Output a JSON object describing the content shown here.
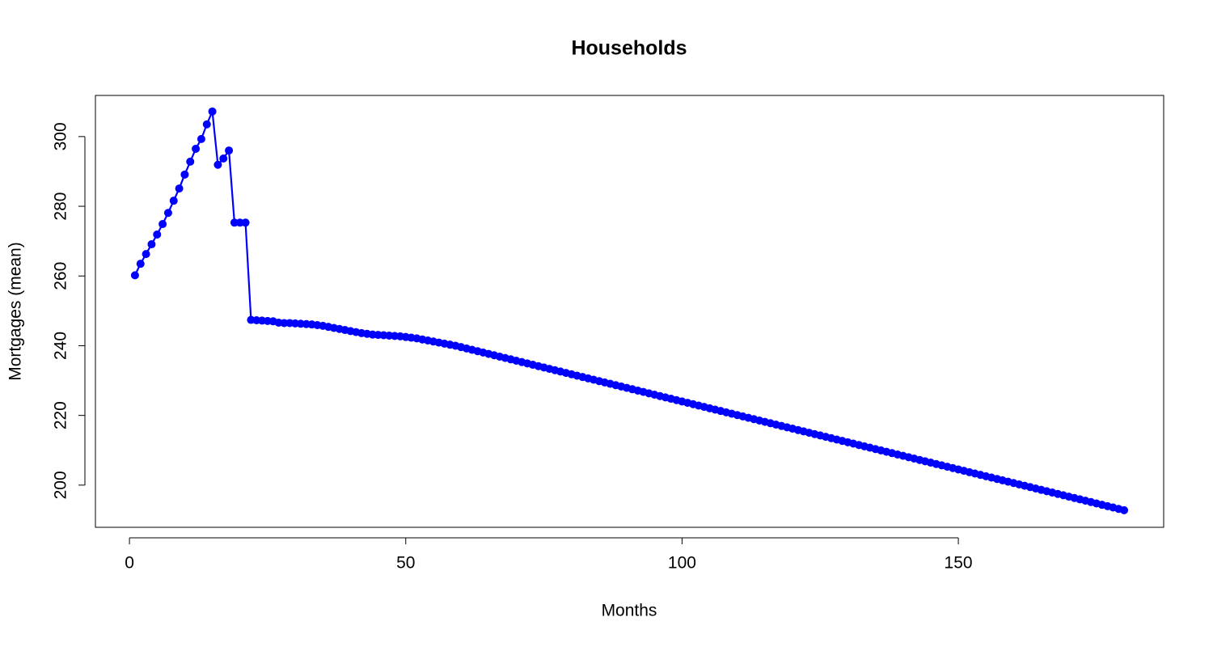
{
  "chart_data": {
    "type": "line",
    "title": "Households",
    "xlabel": "Months",
    "ylabel": "Mortgages (mean)",
    "x": [
      1,
      2,
      3,
      4,
      5,
      6,
      7,
      8,
      9,
      10,
      11,
      12,
      13,
      14,
      15,
      16,
      17,
      18,
      19,
      20,
      21,
      22,
      23,
      24,
      25,
      26,
      27,
      28,
      29,
      30,
      31,
      32,
      33,
      34,
      35,
      36,
      37,
      38,
      39,
      40,
      41,
      42,
      43,
      44,
      45,
      46,
      47,
      48,
      49,
      50,
      51,
      52,
      53,
      54,
      55,
      56,
      57,
      58,
      59,
      60,
      61,
      62,
      63,
      64,
      65,
      66,
      67,
      68,
      69,
      70,
      71,
      72,
      73,
      74,
      75,
      76,
      77,
      78,
      79,
      80,
      81,
      82,
      83,
      84,
      85,
      86,
      87,
      88,
      89,
      90,
      91,
      92,
      93,
      94,
      95,
      96,
      97,
      98,
      99,
      100,
      101,
      102,
      103,
      104,
      105,
      106,
      107,
      108,
      109,
      110,
      111,
      112,
      113,
      114,
      115,
      116,
      117,
      118,
      119,
      120,
      121,
      122,
      123,
      124,
      125,
      126,
      127,
      128,
      129,
      130,
      131,
      132,
      133,
      134,
      135,
      136,
      137,
      138,
      139,
      140,
      141,
      142,
      143,
      144,
      145,
      146,
      147,
      148,
      149,
      150,
      151,
      152,
      153,
      154,
      155,
      156,
      157,
      158,
      159,
      160,
      161,
      162,
      163,
      164,
      165,
      166,
      167,
      168,
      169,
      170,
      171,
      172,
      173,
      174,
      175,
      176,
      177,
      178,
      179,
      180
    ],
    "values": [
      260.2,
      263.5,
      266.3,
      269.1,
      271.9,
      274.9,
      278.1,
      281.6,
      285.1,
      289.1,
      292.8,
      296.5,
      299.3,
      303.5,
      307.2,
      291.9,
      293.7,
      296.0,
      275.3,
      275.3,
      275.3,
      247.4,
      247.3,
      247.2,
      247.1,
      247.0,
      246.6,
      246.5,
      246.5,
      246.4,
      246.3,
      246.2,
      246.1,
      245.9,
      245.7,
      245.4,
      245.1,
      244.8,
      244.5,
      244.2,
      243.9,
      243.6,
      243.4,
      243.2,
      243.1,
      243.0,
      242.9,
      242.8,
      242.7,
      242.5,
      242.3,
      242.1,
      241.8,
      241.5,
      241.2,
      240.9,
      240.6,
      240.3,
      240.0,
      239.6,
      239.21,
      238.82,
      238.43,
      238.04,
      237.65,
      237.26,
      236.87,
      236.48,
      236.09,
      235.7,
      235.31,
      234.92,
      234.53,
      234.14,
      233.75,
      233.36,
      232.97,
      232.58,
      232.19,
      231.8,
      231.41,
      231.02,
      230.63,
      230.24,
      229.85,
      229.46,
      229.07,
      228.68,
      228.29,
      227.9,
      227.51,
      227.12,
      226.73,
      226.34,
      225.95,
      225.56,
      225.17,
      224.78,
      224.39,
      224.0,
      223.61,
      223.22,
      222.83,
      222.44,
      222.05,
      221.66,
      221.27,
      220.88,
      220.49,
      220.1,
      219.71,
      219.32,
      218.93,
      218.54,
      218.15,
      217.76,
      217.37,
      216.98,
      216.59,
      216.2,
      215.81,
      215.42,
      215.03,
      214.64,
      214.25,
      213.86,
      213.47,
      213.08,
      212.69,
      212.3,
      211.91,
      211.52,
      211.13,
      210.74,
      210.35,
      209.96,
      209.57,
      209.18,
      208.79,
      208.4,
      208.01,
      207.62,
      207.23,
      206.84,
      206.45,
      206.06,
      205.67,
      205.28,
      204.89,
      204.5,
      204.11,
      203.72,
      203.33,
      202.94,
      202.55,
      202.16,
      201.77,
      201.38,
      200.99,
      200.6,
      200.21,
      199.82,
      199.43,
      199.04,
      198.65,
      198.26,
      197.87,
      197.48,
      197.09,
      196.7,
      196.31,
      195.92,
      195.53,
      195.14,
      194.75,
      194.36,
      193.97,
      193.58,
      193.19,
      192.8
    ],
    "color": "#0000ff",
    "markers": true,
    "xlim": [
      -6.16,
      187.16
    ],
    "ylim": [
      187.9,
      311.8
    ],
    "xticks": [
      0,
      50,
      100,
      150
    ],
    "yticks": [
      200,
      220,
      240,
      260,
      280,
      300
    ]
  }
}
